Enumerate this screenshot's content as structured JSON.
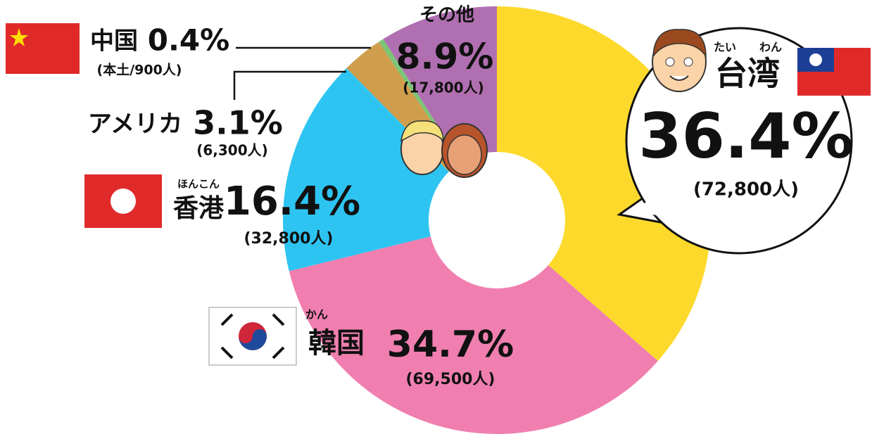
{
  "chart_data": {
    "type": "pie",
    "categories": [
      "台湾",
      "韓国",
      "香港",
      "アメリカ",
      "中国",
      "その他"
    ],
    "values": [
      36.4,
      34.7,
      16.4,
      3.1,
      0.4,
      8.9
    ],
    "value_labels": [
      "36.4%",
      "34.7%",
      "16.4%",
      "3.1%",
      "0.4%",
      "8.9%"
    ],
    "counts": [
      "(72,800人)",
      "(69,500人)",
      "(32,800人)",
      "(6,300人)",
      "(本土/900人)",
      "(17,800人)"
    ],
    "colors": [
      "#fcd92b",
      "#f07fb0",
      "#2ec4f2",
      "#cf9e4d",
      "#7cc576",
      "#b06fb0"
    ],
    "furigana": {
      "taiwan": [
        "たい",
        "わん"
      ],
      "korea": "かん",
      "hongkong": "ほんこん"
    }
  }
}
